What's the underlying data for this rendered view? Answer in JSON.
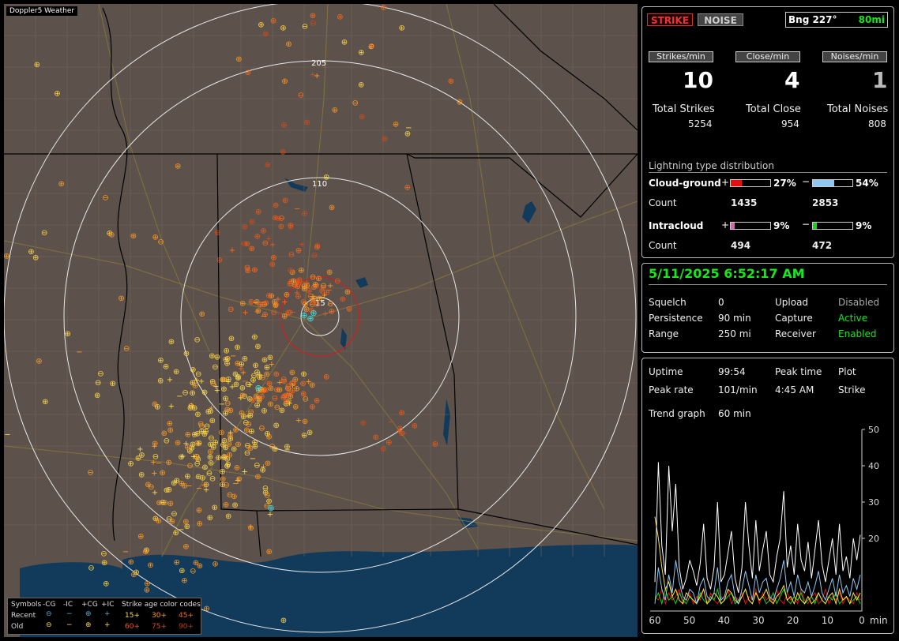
{
  "app": {
    "title": "Doppler5 Weather"
  },
  "map": {
    "range_labels": [
      "205",
      "110",
      "15"
    ],
    "legend": {
      "symbols_label": "Symbols",
      "columns": [
        "-CG",
        "-IC",
        "+CG",
        "+IC"
      ],
      "rows": [
        "Recent",
        "Old"
      ],
      "age_title": "Strike age color codes",
      "age_codes": [
        [
          "15+",
          "30+",
          "45+"
        ],
        [
          "60+",
          "75+",
          "90+"
        ]
      ],
      "age_colors": [
        "#ffd84a",
        "#ff9a22",
        "#ff6a1a",
        "#f05a1a",
        "#d44a18",
        "#b83c16"
      ]
    }
  },
  "counters": {
    "strike_button": "STRIKE",
    "noise_button": "NOISE",
    "bearing": "Bng 227°",
    "range": "80mi",
    "rates": [
      {
        "label": "Strikes/min",
        "value": "10"
      },
      {
        "label": "Close/min",
        "value": "4"
      },
      {
        "label": "Noises/min",
        "value": "1"
      }
    ],
    "totals": [
      {
        "label": "Total Strikes",
        "value": "5254"
      },
      {
        "label": "Total Close",
        "value": "954"
      },
      {
        "label": "Total Noises",
        "value": "808"
      }
    ],
    "distribution": {
      "title": "Lightning type distribution",
      "cloud_ground_label": "Cloud-ground",
      "intracloud_label": "Intracloud",
      "count_label": "Count",
      "plus": "+",
      "minus": "−",
      "cg_pos": {
        "pct": "27%",
        "fraction": 0.27,
        "count": "1435",
        "color": "#e01010"
      },
      "cg_neg": {
        "pct": "54%",
        "fraction": 0.54,
        "count": "2853",
        "color": "#8ec8f0"
      },
      "ic_pos": {
        "pct": "9%",
        "fraction": 0.09,
        "count": "494",
        "color": "#e060b0"
      },
      "ic_neg": {
        "pct": "9%",
        "fraction": 0.09,
        "count": "472",
        "color": "#18d018"
      }
    }
  },
  "status": {
    "datetime": "5/11/2025 6:52:17 AM",
    "rows": [
      {
        "k1": "Squelch",
        "v1": "0",
        "k2": "Upload",
        "v2": "Disabled"
      },
      {
        "k1": "Persistence",
        "v1": "90 min",
        "k2": "Capture",
        "v2": "Active"
      },
      {
        "k1": "Range",
        "v1": "250 mi",
        "k2": "Receiver",
        "v2": "Enabled"
      }
    ]
  },
  "stats": {
    "uptime_label": "Uptime",
    "uptime": "99:54",
    "peak_time_label": "Peak time",
    "peak_time": "4:45 AM",
    "plot_label": "Plot",
    "plot_value": "Strike",
    "peak_rate_label": "Peak rate",
    "peak_rate": "101/min",
    "trend_label": "Trend graph",
    "trend_value": "60 min"
  },
  "chart_data": {
    "type": "line",
    "title": "",
    "x_tick_labels": [
      "60",
      "50",
      "40",
      "30",
      "20",
      "10",
      "0"
    ],
    "x_unit": "min",
    "y_tick_labels": [
      "50",
      "40",
      "30",
      "20"
    ],
    "ylim": [
      0,
      50
    ],
    "series": [
      {
        "color": "#ffffff",
        "values": [
          8,
          41,
          18,
          10,
          40,
          22,
          35,
          12,
          6,
          9,
          14,
          11,
          7,
          13,
          24,
          9,
          6,
          12,
          30,
          8,
          10,
          16,
          22,
          9,
          5,
          12,
          30,
          18,
          9,
          25,
          11,
          17,
          22,
          10,
          8,
          15,
          20,
          33,
          12,
          18,
          10,
          24,
          14,
          11,
          19,
          9,
          17,
          25,
          13,
          8,
          14,
          20,
          10,
          24,
          11,
          15,
          9,
          20,
          14,
          21
        ]
      },
      {
        "color": "#8ec8f0",
        "values": [
          2,
          12,
          6,
          3,
          10,
          5,
          14,
          8,
          4,
          3,
          6,
          5,
          2,
          7,
          9,
          4,
          3,
          5,
          12,
          3,
          4,
          8,
          10,
          4,
          2,
          6,
          11,
          7,
          3,
          10,
          5,
          8,
          9,
          4,
          3,
          6,
          9,
          14,
          5,
          8,
          4,
          10,
          6,
          5,
          8,
          4,
          7,
          11,
          5,
          3,
          6,
          9,
          4,
          10,
          5,
          7,
          4,
          9,
          6,
          10
        ]
      },
      {
        "color": "#ffe040",
        "values": [
          26,
          20,
          12,
          6,
          8,
          4,
          6,
          3,
          2,
          5,
          4,
          3,
          2,
          4,
          6,
          2,
          3,
          5,
          4,
          2,
          3,
          6,
          5,
          3,
          2,
          4,
          6,
          3,
          2,
          5,
          3,
          4,
          6,
          3,
          2,
          4,
          5,
          7,
          3,
          4,
          2,
          5,
          3,
          2,
          4,
          2,
          3,
          5,
          3,
          2,
          4,
          5,
          2,
          6,
          3,
          4,
          2,
          5,
          3,
          5
        ]
      },
      {
        "color": "#18d018",
        "values": [
          3,
          5,
          2,
          6,
          3,
          4,
          2,
          5,
          3,
          2,
          4,
          3,
          2,
          5,
          3,
          2,
          4,
          3,
          6,
          2,
          3,
          4,
          5,
          2,
          3,
          4,
          6,
          3,
          2,
          5,
          3,
          4,
          2,
          3,
          5,
          2,
          4,
          6,
          3,
          2,
          4,
          3,
          5,
          2,
          3,
          4,
          2,
          5,
          3,
          2,
          4,
          3,
          5,
          2,
          3,
          4,
          2,
          3,
          4,
          2
        ]
      },
      {
        "color": "#e01010",
        "values": [
          4,
          3,
          6,
          2,
          5,
          3,
          4,
          6,
          2,
          3,
          5,
          2,
          4,
          3,
          6,
          2,
          5,
          3,
          2,
          4,
          3,
          6,
          2,
          4,
          3,
          5,
          2,
          4,
          3,
          6,
          2,
          5,
          3,
          4,
          2,
          6,
          3,
          2,
          5,
          3,
          4,
          2,
          6,
          3,
          2,
          4,
          5,
          2,
          3,
          6,
          2,
          4,
          3,
          5,
          2,
          4,
          3,
          2,
          5,
          3
        ]
      }
    ]
  }
}
